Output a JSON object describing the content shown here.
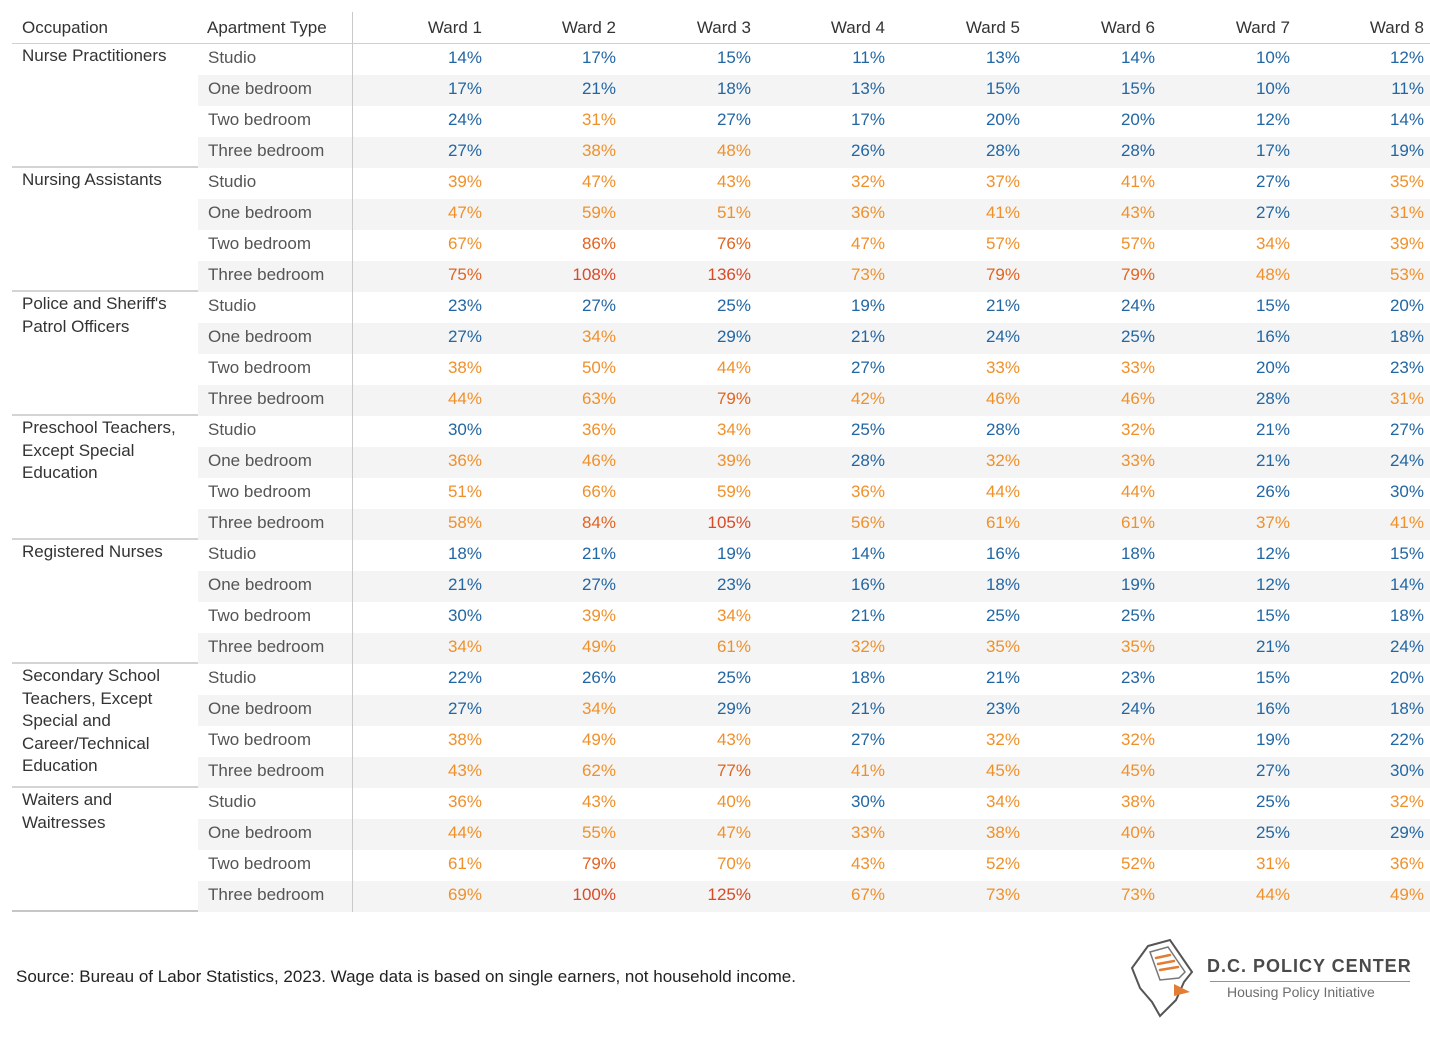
{
  "chart_data": {
    "type": "table",
    "columns": [
      "Occupation",
      "Apartment Type",
      "Ward 1",
      "Ward 2",
      "Ward 3",
      "Ward 4",
      "Ward 5",
      "Ward 6",
      "Ward 7",
      "Ward 8"
    ],
    "apartment_types": [
      "Studio",
      "One bedroom",
      "Two bedroom",
      "Three bedroom"
    ],
    "groups": [
      {
        "occupation": "Nurse Practitioners",
        "rows": [
          [
            "14%",
            "17%",
            "15%",
            "11%",
            "13%",
            "14%",
            "10%",
            "12%"
          ],
          [
            "17%",
            "21%",
            "18%",
            "13%",
            "15%",
            "15%",
            "10%",
            "11%"
          ],
          [
            "24%",
            "31%",
            "27%",
            "17%",
            "20%",
            "20%",
            "12%",
            "14%"
          ],
          [
            "27%",
            "38%",
            "48%",
            "26%",
            "28%",
            "28%",
            "17%",
            "19%"
          ]
        ]
      },
      {
        "occupation": "Nursing Assistants",
        "rows": [
          [
            "39%",
            "47%",
            "43%",
            "32%",
            "37%",
            "41%",
            "27%",
            "35%"
          ],
          [
            "47%",
            "59%",
            "51%",
            "36%",
            "41%",
            "43%",
            "27%",
            "31%"
          ],
          [
            "67%",
            "86%",
            "76%",
            "47%",
            "57%",
            "57%",
            "34%",
            "39%"
          ],
          [
            "75%",
            "108%",
            "136%",
            "73%",
            "79%",
            "79%",
            "48%",
            "53%"
          ]
        ]
      },
      {
        "occupation": "Police and Sheriff's Patrol Officers",
        "rows": [
          [
            "23%",
            "27%",
            "25%",
            "19%",
            "21%",
            "24%",
            "15%",
            "20%"
          ],
          [
            "27%",
            "34%",
            "29%",
            "21%",
            "24%",
            "25%",
            "16%",
            "18%"
          ],
          [
            "38%",
            "50%",
            "44%",
            "27%",
            "33%",
            "33%",
            "20%",
            "23%"
          ],
          [
            "44%",
            "63%",
            "79%",
            "42%",
            "46%",
            "46%",
            "28%",
            "31%"
          ]
        ]
      },
      {
        "occupation": "Preschool Teachers, Except Special Education",
        "rows": [
          [
            "30%",
            "36%",
            "34%",
            "25%",
            "28%",
            "32%",
            "21%",
            "27%"
          ],
          [
            "36%",
            "46%",
            "39%",
            "28%",
            "32%",
            "33%",
            "21%",
            "24%"
          ],
          [
            "51%",
            "66%",
            "59%",
            "36%",
            "44%",
            "44%",
            "26%",
            "30%"
          ],
          [
            "58%",
            "84%",
            "105%",
            "56%",
            "61%",
            "61%",
            "37%",
            "41%"
          ]
        ]
      },
      {
        "occupation": "Registered Nurses",
        "rows": [
          [
            "18%",
            "21%",
            "19%",
            "14%",
            "16%",
            "18%",
            "12%",
            "15%"
          ],
          [
            "21%",
            "27%",
            "23%",
            "16%",
            "18%",
            "19%",
            "12%",
            "14%"
          ],
          [
            "30%",
            "39%",
            "34%",
            "21%",
            "25%",
            "25%",
            "15%",
            "18%"
          ],
          [
            "34%",
            "49%",
            "61%",
            "32%",
            "35%",
            "35%",
            "21%",
            "24%"
          ]
        ]
      },
      {
        "occupation": "Secondary School Teachers, Except Special and Career/Technical Education",
        "rows": [
          [
            "22%",
            "26%",
            "25%",
            "18%",
            "21%",
            "23%",
            "15%",
            "20%"
          ],
          [
            "27%",
            "34%",
            "29%",
            "21%",
            "23%",
            "24%",
            "16%",
            "18%"
          ],
          [
            "38%",
            "49%",
            "43%",
            "27%",
            "32%",
            "32%",
            "19%",
            "22%"
          ],
          [
            "43%",
            "62%",
            "77%",
            "41%",
            "45%",
            "45%",
            "27%",
            "30%"
          ]
        ]
      },
      {
        "occupation": "Waiters and Waitresses",
        "rows": [
          [
            "36%",
            "43%",
            "40%",
            "30%",
            "34%",
            "38%",
            "25%",
            "32%"
          ],
          [
            "44%",
            "55%",
            "47%",
            "33%",
            "38%",
            "40%",
            "25%",
            "29%"
          ],
          [
            "61%",
            "79%",
            "70%",
            "43%",
            "52%",
            "52%",
            "31%",
            "36%"
          ],
          [
            "69%",
            "100%",
            "125%",
            "67%",
            "73%",
            "73%",
            "44%",
            "49%"
          ]
        ]
      }
    ],
    "color_scale": {
      "blue": "#2266a3",
      "orange": "#f0902a",
      "dark_orange": "#e26320",
      "red_orange": "#d94a26"
    }
  },
  "source": "Source: Bureau of Labor Statistics, 2023. Wage data is based on single earners, not household income.",
  "logo": {
    "title": "D.C. POLICY CENTER",
    "subtitle": "Housing Policy Initiative",
    "accent": "#e27d36"
  }
}
